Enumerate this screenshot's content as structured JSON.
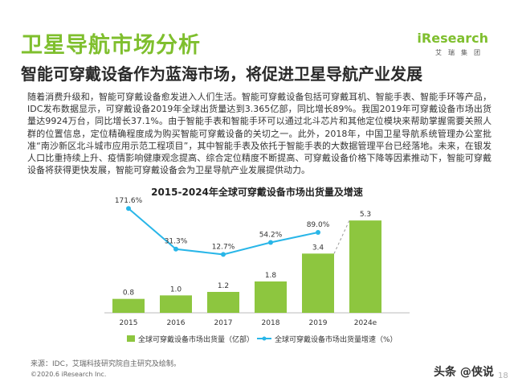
{
  "header": {
    "title": "卫星导航市场分析",
    "subtitle": "智能可穿戴设备作为蓝海市场，将促进卫星导航产业发展",
    "logo_text": "iResearch",
    "logo_cn": "艾瑞集团"
  },
  "body_text": "随着消费升级和，智能可穿戴设备愈发进入人们生活。智能可穿戴设备包括可穿戴耳机、智能手表、智能手环等产品，IDC发布数据显示，可穿戴设备2019年全球出货量达到3.365亿部，同比增长89%。我国2019年可穿戴设备市场出货量达9924万台，同比增长37.1%。由于智能手表和智能手环可以通过北斗芯片和其他定位模块来帮助掌握需要关照人群的位置信息，定位精确程度成为购买智能可穿戴设备的关切之一。此外，2018年，中国卫星导航系统管理办公室批准“南沙新区北斗城市应用示范工程项目”，其中智能手表及依托于智能手表的大数据管理平台已经落地。未来，在银发人口比重持续上升、疫情影响健康观念提高、综合定位精度不断提高、可穿戴设备价格下降等因素推动下，智能可穿戴设备将获得更快发展，智能可穿戴设备会为卫星导航产业发展提供动力。",
  "chart_data": {
    "type": "bar",
    "title": "2015-2024年全球可穿戴设备市场出货量及增速",
    "categories": [
      "2015",
      "2016",
      "2017",
      "2018",
      "2019",
      "2024e"
    ],
    "series": [
      {
        "name": "全球可穿戴设备市场出货量（亿部）",
        "type": "bar",
        "values": [
          0.8,
          1.0,
          1.2,
          1.8,
          3.4,
          5.3
        ],
        "labels": [
          "0.8",
          "1.0",
          "1.2",
          "1.8",
          "3.4",
          "5.3"
        ],
        "color": "#8dc63f"
      },
      {
        "name": "全球可穿戴设备市场出货量增速（%）",
        "type": "line",
        "values": [
          171.6,
          31.3,
          12.7,
          54.2,
          89.0,
          null
        ],
        "labels": [
          "171.6%",
          "31.3%",
          "12.7%",
          "54.2%",
          "89.0%",
          ""
        ],
        "color": "#29b6e8"
      }
    ],
    "bar_max": 6,
    "line_range": [
      0,
      200
    ],
    "legend_position": "bottom",
    "grid": false
  },
  "footer": {
    "source": "来源：IDC，艾瑞科技研究院自主研究及绘制。",
    "copyright": "©2020.6 iResearch Inc.",
    "watermark": "头条 @侠说",
    "page_number": "18"
  }
}
